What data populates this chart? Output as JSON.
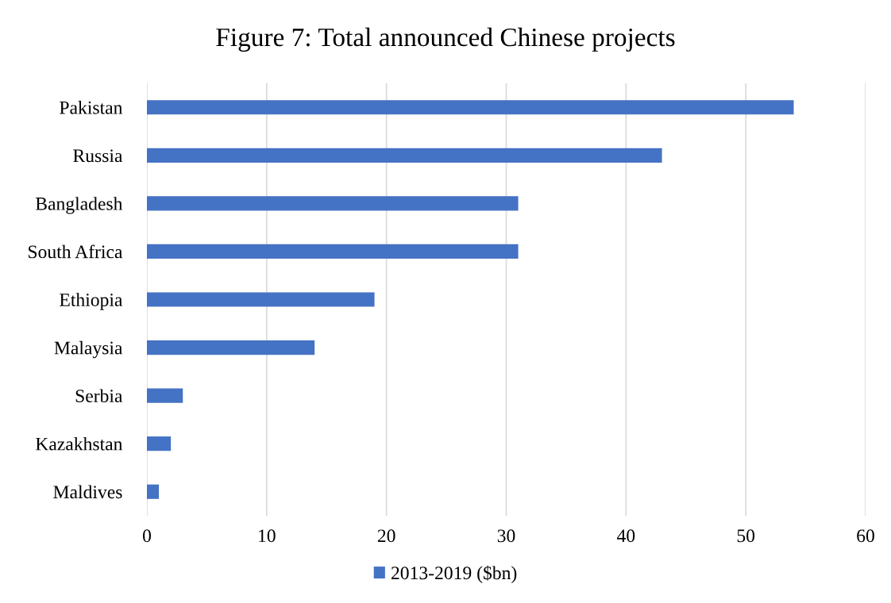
{
  "chart_data": {
    "type": "bar",
    "orientation": "horizontal",
    "title": "Figure 7: Total announced Chinese projects",
    "categories": [
      "Pakistan",
      "Russia",
      "Bangladesh",
      "South Africa",
      "Ethiopia",
      "Malaysia",
      "Serbia",
      "Kazakhstan",
      "Maldives"
    ],
    "series": [
      {
        "name": "2013-2019 ($bn)",
        "color": "#4472c4",
        "values": [
          54,
          43,
          31,
          31,
          19,
          14,
          3,
          2,
          1
        ]
      }
    ],
    "xlim": [
      0,
      60
    ],
    "xticks": [
      0,
      10,
      20,
      30,
      40,
      50,
      60
    ],
    "grid": "x",
    "legend": "bottom"
  }
}
